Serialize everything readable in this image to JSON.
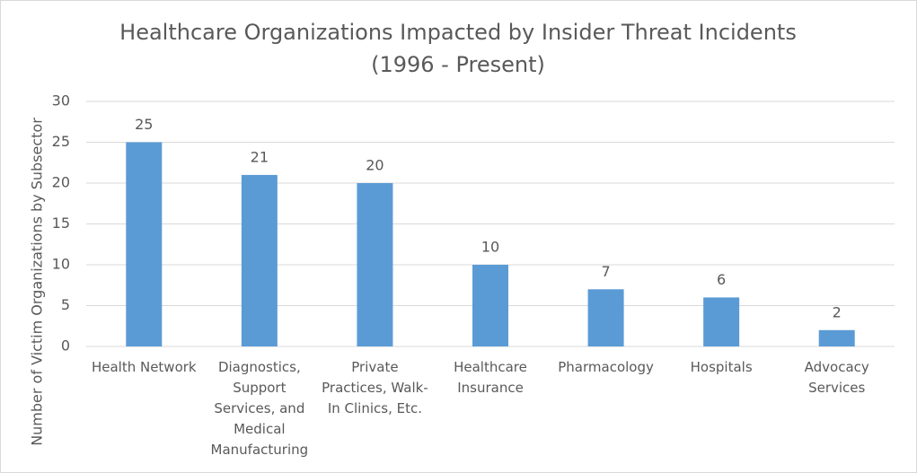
{
  "chart_data": {
    "type": "bar",
    "title": "Healthcare Organizations Impacted by Insider Threat Incidents",
    "subtitle": "(1996 - Present)",
    "y_label": "Number of Victim Organizations by Subsector",
    "categories": [
      "Health Network",
      "Diagnostics, Support Services, and Medical Manufacturing",
      "Private Practices, Walk-In Clinics, Etc.",
      "Healthcare Insurance",
      "Pharmacology",
      "Hospitals",
      "Advocacy Services"
    ],
    "values": [
      25,
      21,
      20,
      10,
      7,
      6,
      2
    ],
    "color": "#5b9bd5",
    "ylim": [
      0,
      30
    ],
    "yticks": [
      0,
      5,
      10,
      15,
      20,
      25,
      30
    ],
    "grid": true
  }
}
